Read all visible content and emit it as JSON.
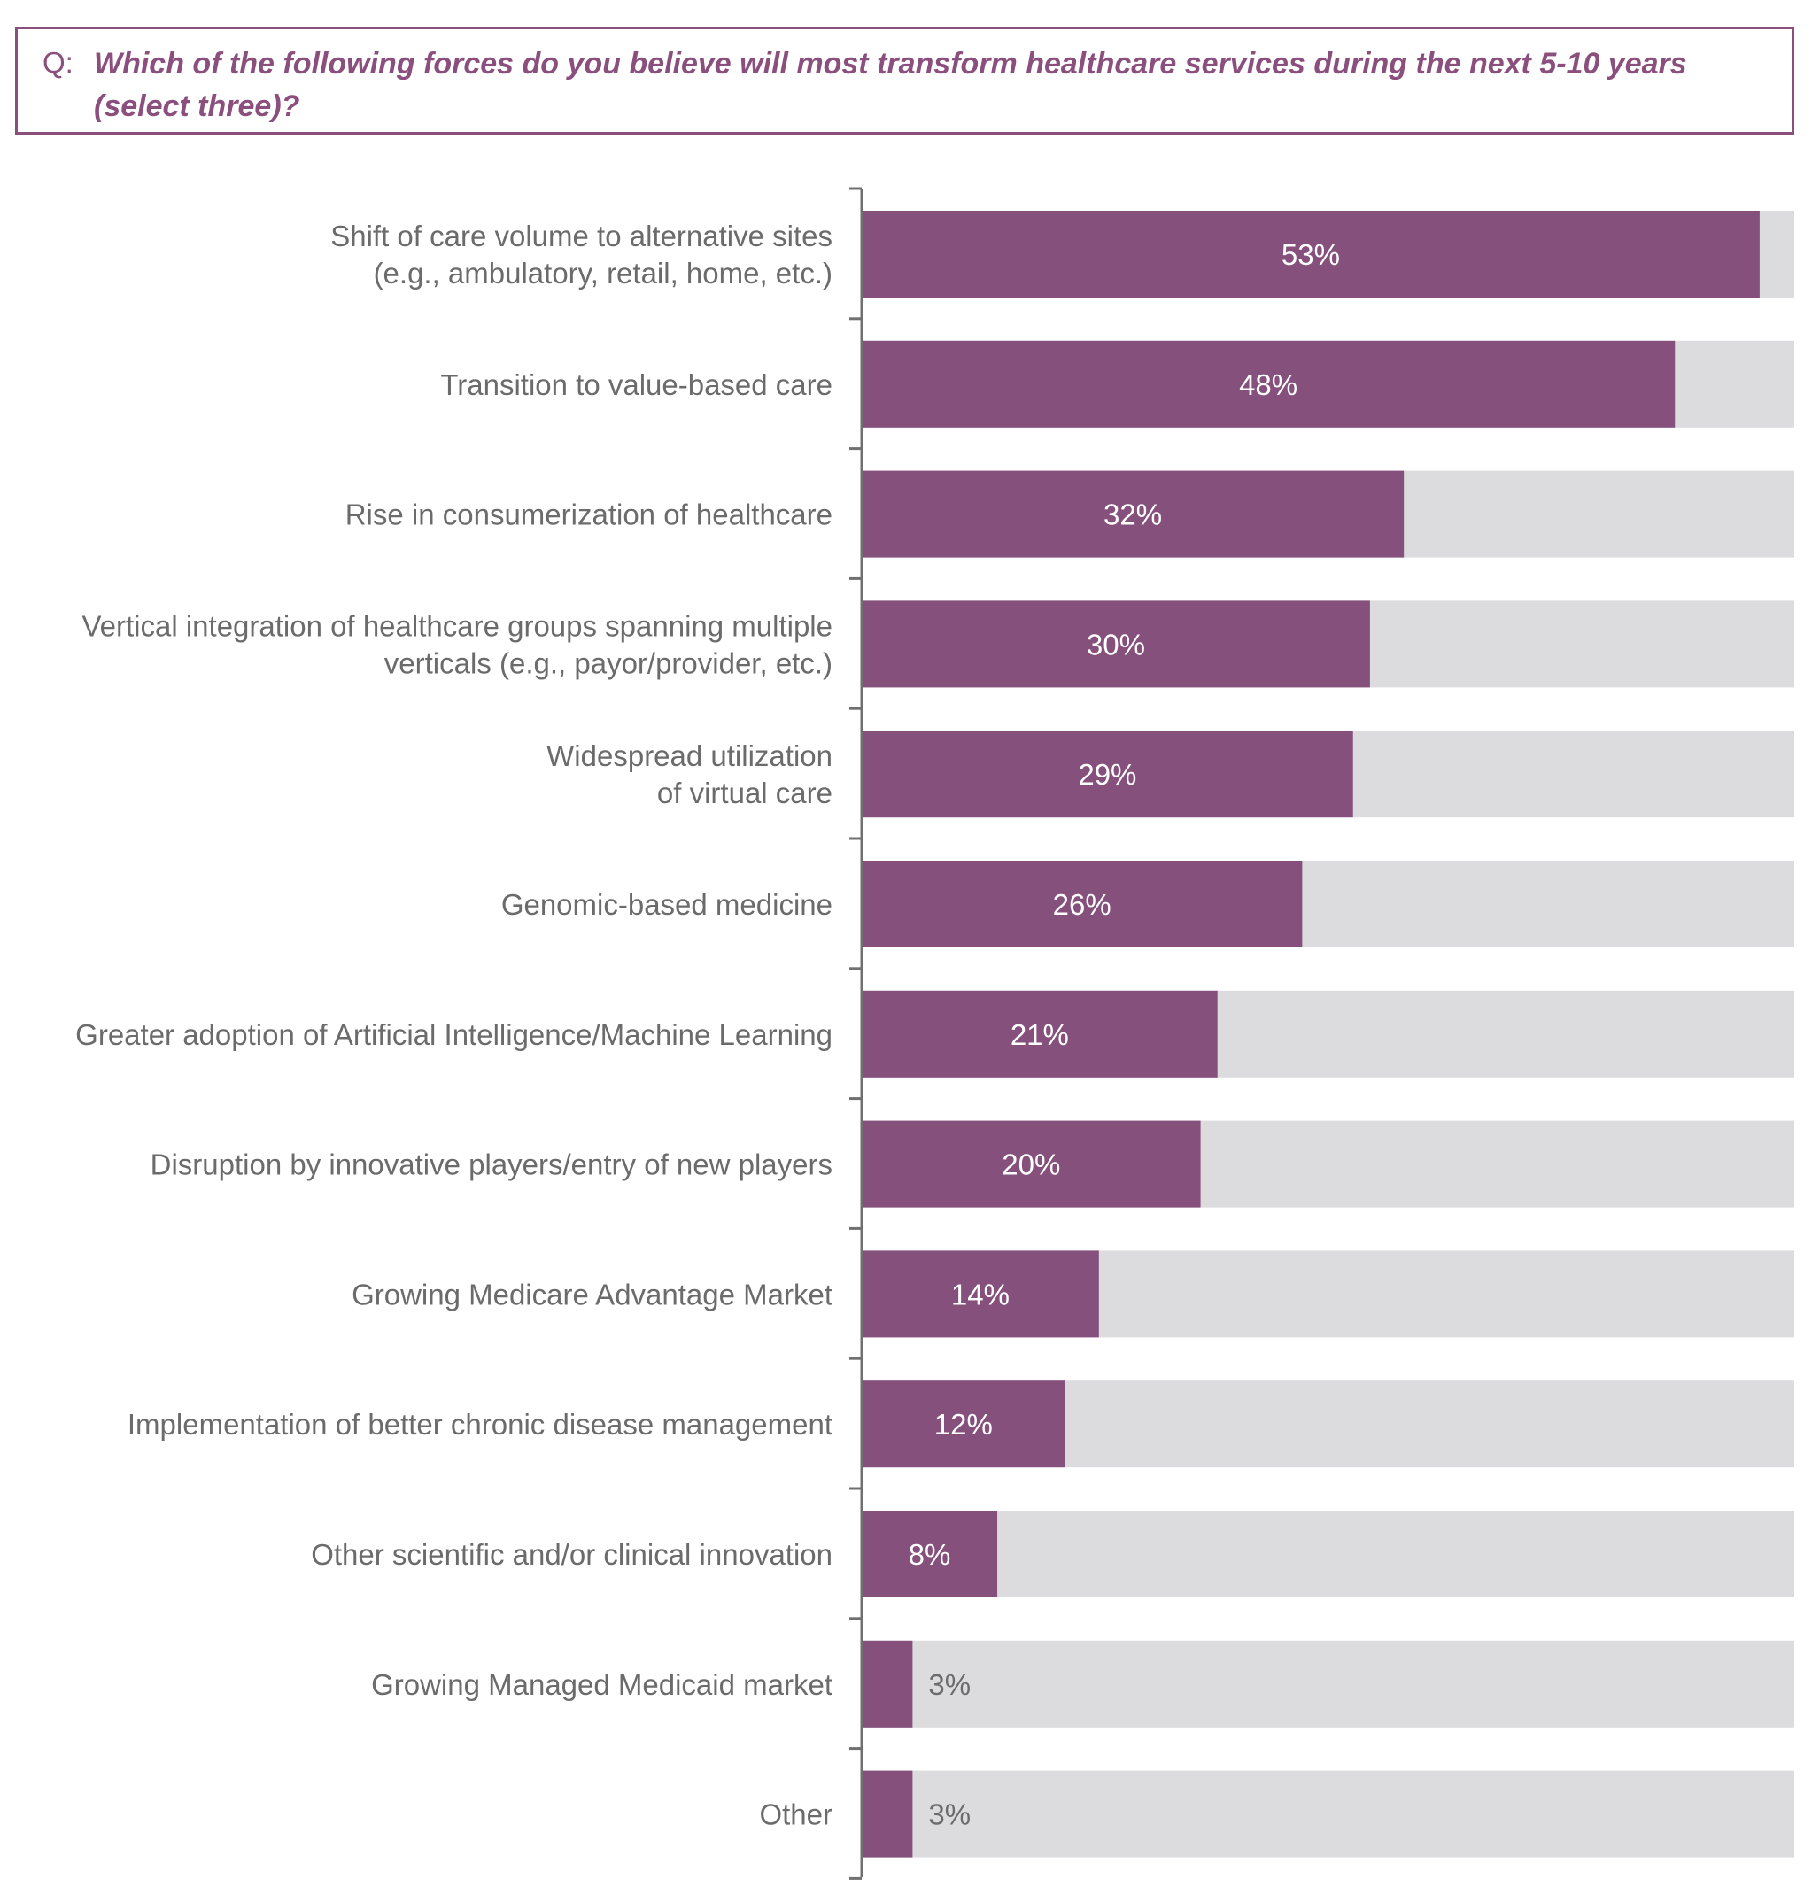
{
  "question": {
    "prefix": "Q:",
    "text": "Which of the following forces do you believe will most transform healthcare services during the next 5-10 years (select three)?"
  },
  "colors": {
    "bar": "#86507d",
    "track": "#dcdcde",
    "axis": "#707070",
    "label": "#6b6b6b",
    "accent": "#8b4f7e"
  },
  "chart_data": {
    "type": "bar",
    "orientation": "horizontal",
    "title": "",
    "xlabel": "",
    "ylabel": "",
    "xlim": [
      0,
      55
    ],
    "categories": [
      [
        "Shift of care volume to alternative sites",
        "(e.g., ambulatory, retail, home, etc.)"
      ],
      [
        "Transition to value-based care"
      ],
      [
        "Rise in consumerization of healthcare"
      ],
      [
        "Vertical integration of healthcare groups spanning multiple",
        "verticals (e.g., payor/provider, etc.)"
      ],
      [
        "Widespread utilization",
        "of virtual care"
      ],
      [
        "Genomic-based medicine"
      ],
      [
        "Greater adoption of Artificial Intelligence/Machine Learning"
      ],
      [
        "Disruption by innovative players/entry of new players"
      ],
      [
        "Growing Medicare Advantage Market"
      ],
      [
        "Implementation of better chronic disease management"
      ],
      [
        "Other scientific and/or clinical innovation"
      ],
      [
        "Growing Managed Medicaid market"
      ],
      [
        "Other"
      ]
    ],
    "values": [
      53,
      48,
      32,
      30,
      29,
      26,
      21,
      20,
      14,
      12,
      8,
      3,
      3
    ],
    "labels": [
      "53%",
      "48%",
      "32%",
      "30%",
      "29%",
      "26%",
      "21%",
      "20%",
      "14%",
      "12%",
      "8%",
      "3%",
      "3%"
    ],
    "grid": false,
    "legend": "none"
  }
}
